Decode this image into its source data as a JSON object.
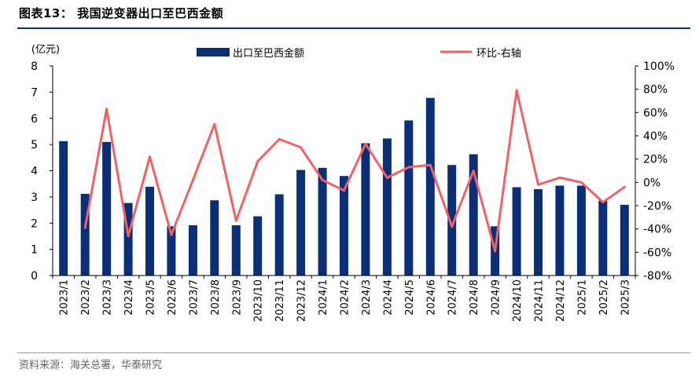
{
  "figure": {
    "title": "图表13：  我国逆变器出口至巴西金额",
    "source": "资料来源：海关总署，华泰研究"
  },
  "chart_data": {
    "type": "bar+line",
    "categories": [
      "2023/1",
      "2023/2",
      "2023/3",
      "2023/4",
      "2023/5",
      "2023/6",
      "2023/7",
      "2023/8",
      "2023/9",
      "2023/10",
      "2023/11",
      "2023/12",
      "2024/1",
      "2024/2",
      "2024/3",
      "2024/4",
      "2024/5",
      "2024/6",
      "2024/7",
      "2024/8",
      "2024/9",
      "2024/10",
      "2024/11",
      "2024/12",
      "2025/1",
      "2025/2",
      "2025/3"
    ],
    "series": [
      {
        "name": "出口至巴西金额",
        "type": "bar",
        "axis": "left",
        "color": "#0a2f77",
        "values": [
          5.13,
          3.12,
          5.1,
          2.77,
          3.39,
          1.88,
          1.92,
          2.87,
          1.92,
          2.26,
          3.1,
          4.03,
          4.11,
          3.8,
          5.05,
          5.23,
          5.92,
          6.78,
          4.22,
          4.63,
          1.88,
          3.37,
          3.3,
          3.43,
          3.43,
          2.86,
          2.7
        ]
      },
      {
        "name": "环比-右轴",
        "type": "line",
        "axis": "right",
        "color": "#f06165",
        "values": [
          null,
          -39,
          63,
          -46,
          22,
          -45,
          2,
          50,
          -33,
          18,
          37,
          30,
          2,
          -7,
          33,
          4,
          13,
          15,
          -38,
          10,
          -59,
          79,
          -2,
          4,
          0,
          -17,
          -4
        ]
      }
    ],
    "y_left": {
      "label": "(亿元)",
      "min": 0,
      "max": 8,
      "ticks": [
        "0",
        "1",
        "2",
        "3",
        "4",
        "5",
        "6",
        "7",
        "8"
      ]
    },
    "y_right": {
      "min": -80,
      "max": 100,
      "ticks": [
        "-80%",
        "-60%",
        "-40%",
        "-20%",
        "0%",
        "20%",
        "40%",
        "60%",
        "80%",
        "100%"
      ]
    },
    "legend_position": "top",
    "grid": false
  }
}
